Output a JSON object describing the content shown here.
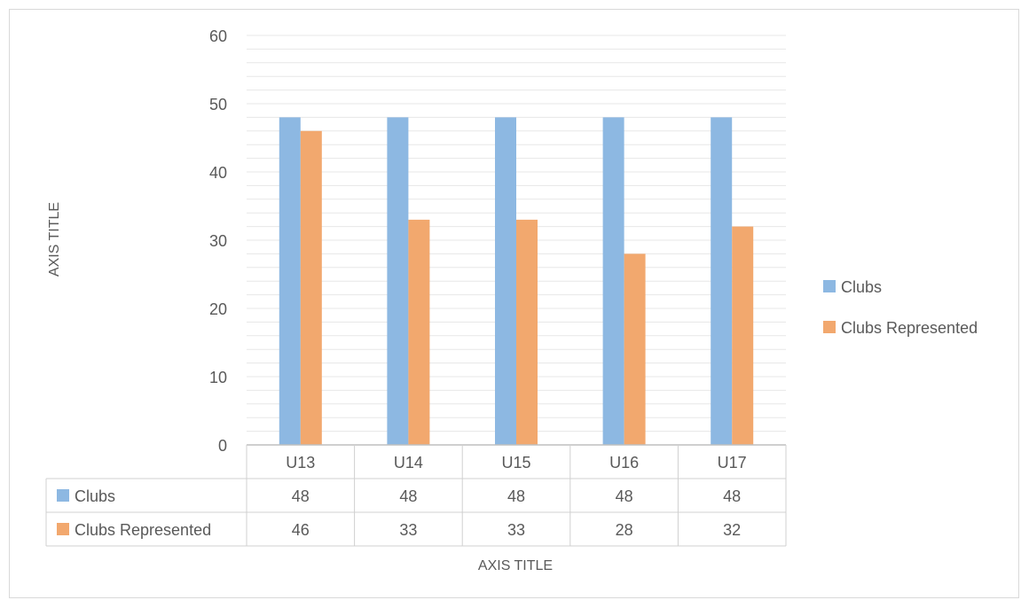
{
  "chart_data": {
    "type": "bar",
    "categories": [
      "U13",
      "U14",
      "U15",
      "U16",
      "U17"
    ],
    "series": [
      {
        "name": "Clubs",
        "values": [
          48,
          48,
          48,
          48,
          48
        ],
        "color": "#8db8e2"
      },
      {
        "name": "Clubs Represented",
        "values": [
          46,
          33,
          33,
          28,
          32
        ],
        "color": "#f2a86e"
      }
    ],
    "ylim": [
      0,
      60
    ],
    "yticks": [
      0,
      10,
      20,
      30,
      40,
      50,
      60
    ],
    "xlabel": "AXIS TITLE",
    "ylabel": "AXIS TITLE",
    "grid": true,
    "legend": "right",
    "data_table": true
  },
  "colors": {
    "text": "#595959",
    "gridline": "#e7e7e7",
    "axis": "#bfbfbf",
    "table_border": "#d0d0d0"
  }
}
